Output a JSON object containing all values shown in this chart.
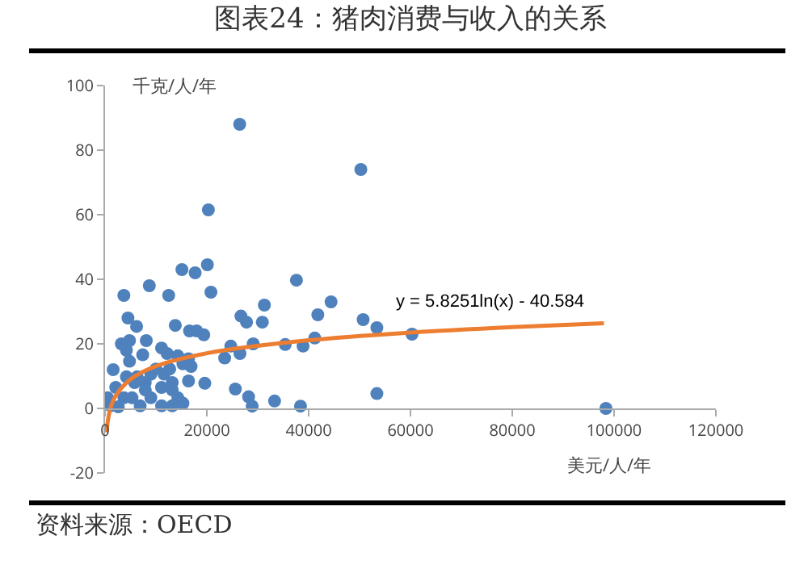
{
  "chart_data": {
    "type": "scatter",
    "title": "图表24：猪肉消费与收入的关系",
    "xlabel": "美元/人/年",
    "ylabel": "千克/人/年",
    "xlim": [
      0,
      120000
    ],
    "xticks": [
      0,
      20000,
      40000,
      60000,
      80000,
      100000,
      120000
    ],
    "ylim": [
      -20,
      100
    ],
    "yticks": [
      -20,
      0,
      20,
      40,
      60,
      80,
      100
    ],
    "grid": false,
    "marker": "circle",
    "series": [
      {
        "color": "#4f81bd",
        "x": [
          26450,
          50250,
          20300,
          20100,
          15100,
          17700,
          8700,
          3700,
          12500,
          20800,
          37600,
          44400,
          31300,
          41800,
          26700,
          27800,
          30900,
          50700,
          53400,
          60300,
          13800,
          16600,
          18000,
          19400,
          41200,
          35400,
          38900,
          29100,
          24700,
          23500,
          26500,
          25600,
          28200,
          33300,
          38400,
          28900,
          53400,
          7900,
          13200,
          16400,
          19600,
          4500,
          6200,
          4800,
          8100,
          3200,
          4200,
          7400,
          4800,
          1600,
          11100,
          12200,
          14300,
          15300,
          16400,
          16900,
          10000,
          9000,
          6300,
          11100,
          13200,
          14300,
          15300,
          11100,
          6900,
          3700,
          2100,
          1100,
          500,
          2600,
          5300,
          9000,
          13200,
          7900,
          5800,
          4200,
          11600,
          12700,
          98400
        ],
        "values": [
          88,
          74,
          61.5,
          44.5,
          43,
          42,
          38,
          35,
          35,
          36,
          39.7,
          33,
          32,
          29,
          28.6,
          26.7,
          26.7,
          27.5,
          25,
          23,
          25.7,
          24,
          24,
          22.8,
          21.8,
          19.8,
          19.3,
          20,
          19.3,
          15.6,
          17,
          6,
          3.6,
          2.3,
          0.7,
          0.7,
          4.6,
          8,
          8,
          8.5,
          7.8,
          28,
          25.4,
          21,
          21,
          20,
          18,
          16.6,
          14.6,
          12,
          18.7,
          17,
          16.3,
          13.8,
          15.4,
          13,
          12.2,
          10.6,
          9.8,
          6.5,
          5.7,
          3.3,
          1.6,
          0.8,
          0.8,
          3.3,
          6.5,
          0.8,
          3.3,
          0.5,
          3.3,
          3.3,
          0.8,
          5.7,
          8,
          9.8,
          10.6,
          12.2,
          0
        ]
      },
      {
        "type": "line",
        "color": "#ed7d31",
        "line_style": "solid",
        "marker": "none",
        "x": [
          300,
          500,
          1000,
          2000,
          5000,
          10000,
          20000,
          40000,
          60000,
          80000,
          98000
        ],
        "values": [
          -7.4,
          -4.4,
          -0.3,
          3.7,
          9,
          13.1,
          17.1,
          21.1,
          23.5,
          25.2,
          26.4
        ]
      }
    ],
    "annotations": [
      "y = 5.8251ln(x) - 40.584",
      "资料来源：OECD"
    ]
  }
}
